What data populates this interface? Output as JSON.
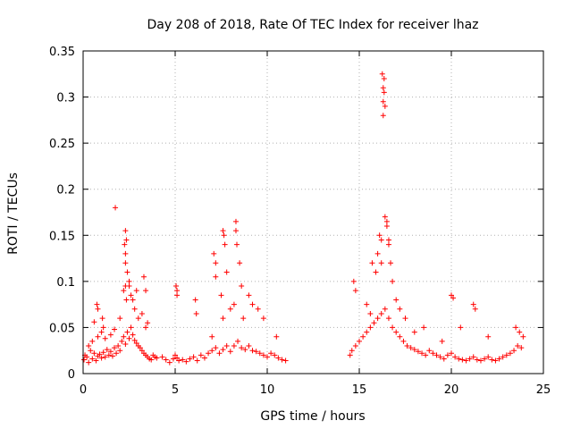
{
  "chart_data": {
    "type": "scatter",
    "title": "Day 208 of 2018, Rate Of TEC Index for receiver lhaz",
    "xlabel": "GPS time / hours",
    "ylabel": "ROTI / TECUs",
    "xlim": [
      0,
      25
    ],
    "ylim": [
      0,
      0.35
    ],
    "xticks": [
      0,
      5,
      10,
      15,
      20,
      25
    ],
    "yticks": [
      0,
      0.05,
      0.1,
      0.15,
      0.2,
      0.25,
      0.3,
      0.35
    ],
    "xtick_labels": [
      "0",
      "5",
      "10",
      "15",
      "20",
      "25"
    ],
    "ytick_labels": [
      "0",
      "0.05",
      "0.1",
      "0.15",
      "0.2",
      "0.25",
      "0.3",
      "0.35"
    ],
    "grid": true,
    "marker": "+",
    "color": "#ff0000",
    "series": [
      {
        "x": [
          0.05,
          0.1,
          0.2,
          0.3,
          0.4,
          0.5,
          0.6,
          0.7,
          0.8,
          0.9,
          1.0,
          1.1,
          1.2,
          1.3,
          1.4,
          1.5,
          1.6,
          1.7,
          1.8,
          1.9,
          2.0,
          2.1,
          2.2,
          2.3,
          2.4,
          2.5,
          2.6,
          2.7,
          2.8,
          2.9,
          3.0,
          3.1,
          3.2,
          3.3,
          3.4,
          3.5,
          3.6,
          3.7,
          3.8,
          3.9,
          4.0,
          0.3,
          0.5,
          0.8,
          1.0,
          1.2,
          1.5,
          1.7,
          2.0,
          2.2,
          2.3,
          2.3,
          2.35,
          2.4,
          2.5,
          2.6,
          2.8,
          3.0,
          3.2,
          3.4,
          3.5,
          0.6,
          0.75,
          0.8,
          1.05,
          1.1,
          1.75,
          2.25,
          2.3,
          2.3,
          2.35,
          2.5,
          2.7,
          2.9,
          3.3,
          3.4,
          4.3,
          4.5,
          4.7,
          4.9,
          5.0,
          5.1,
          5.2,
          5.4,
          5.6,
          5.8,
          6.0,
          6.2,
          6.4,
          6.6,
          6.8,
          7.0,
          7.2,
          7.4,
          7.6,
          7.8,
          8.0,
          8.2,
          8.4,
          8.6,
          8.8,
          9.0,
          9.2,
          9.4,
          9.6,
          9.8,
          10.0,
          10.2,
          10.4,
          10.6,
          10.8,
          11.0,
          5.05,
          5.1,
          5.1,
          6.1,
          6.15,
          7.0,
          7.1,
          7.2,
          7.2,
          7.5,
          7.6,
          7.6,
          7.65,
          7.7,
          7.8,
          8.0,
          8.2,
          8.3,
          8.3,
          8.35,
          8.5,
          8.6,
          8.7,
          9.0,
          9.2,
          9.5,
          9.8,
          10.5,
          14.5,
          14.6,
          14.8,
          15.0,
          15.2,
          15.4,
          15.6,
          15.8,
          16.0,
          16.2,
          16.4,
          16.6,
          16.8,
          17.0,
          17.2,
          17.4,
          17.6,
          17.8,
          18.0,
          18.2,
          18.4,
          18.6,
          18.8,
          19.0,
          19.2,
          19.4,
          19.6,
          19.8,
          20.0,
          20.2,
          20.4,
          20.6,
          20.8,
          21.0,
          21.2,
          21.4,
          21.6,
          21.8,
          22.0,
          22.2,
          22.4,
          22.6,
          22.8,
          23.0,
          23.2,
          23.4,
          23.6,
          23.8,
          14.7,
          14.8,
          15.4,
          15.6,
          15.7,
          15.9,
          16.0,
          16.1,
          16.2,
          16.2,
          16.25,
          16.3,
          16.3,
          16.3,
          16.35,
          16.35,
          16.4,
          16.4,
          16.5,
          16.5,
          16.6,
          16.6,
          16.7,
          16.8,
          17.0,
          17.2,
          17.5,
          18.0,
          18.5,
          19.5,
          20.0,
          20.1,
          20.5,
          21.2,
          21.3,
          22.0,
          23.5,
          23.7,
          23.9
        ],
        "y": [
          0.015,
          0.02,
          0.018,
          0.012,
          0.025,
          0.016,
          0.022,
          0.014,
          0.019,
          0.021,
          0.017,
          0.023,
          0.018,
          0.026,
          0.02,
          0.024,
          0.019,
          0.028,
          0.022,
          0.03,
          0.025,
          0.035,
          0.04,
          0.032,
          0.045,
          0.038,
          0.05,
          0.042,
          0.036,
          0.033,
          0.03,
          0.028,
          0.025,
          0.022,
          0.02,
          0.018,
          0.016,
          0.015,
          0.02,
          0.018,
          0.017,
          0.03,
          0.035,
          0.04,
          0.045,
          0.038,
          0.042,
          0.048,
          0.06,
          0.09,
          0.13,
          0.155,
          0.145,
          0.11,
          0.1,
          0.085,
          0.07,
          0.06,
          0.065,
          0.05,
          0.055,
          0.056,
          0.075,
          0.07,
          0.06,
          0.05,
          0.18,
          0.14,
          0.12,
          0.095,
          0.08,
          0.095,
          0.08,
          0.09,
          0.105,
          0.09,
          0.018,
          0.015,
          0.012,
          0.016,
          0.02,
          0.017,
          0.014,
          0.015,
          0.013,
          0.016,
          0.018,
          0.014,
          0.02,
          0.017,
          0.022,
          0.025,
          0.028,
          0.022,
          0.026,
          0.03,
          0.024,
          0.03,
          0.035,
          0.028,
          0.026,
          0.03,
          0.025,
          0.024,
          0.022,
          0.02,
          0.018,
          0.022,
          0.02,
          0.017,
          0.015,
          0.014,
          0.095,
          0.09,
          0.085,
          0.08,
          0.065,
          0.04,
          0.13,
          0.12,
          0.105,
          0.085,
          0.06,
          0.155,
          0.15,
          0.14,
          0.11,
          0.07,
          0.075,
          0.165,
          0.155,
          0.14,
          0.12,
          0.095,
          0.06,
          0.085,
          0.075,
          0.07,
          0.06,
          0.04,
          0.02,
          0.025,
          0.03,
          0.035,
          0.04,
          0.045,
          0.05,
          0.055,
          0.06,
          0.065,
          0.07,
          0.06,
          0.05,
          0.045,
          0.04,
          0.035,
          0.03,
          0.028,
          0.026,
          0.024,
          0.022,
          0.02,
          0.025,
          0.022,
          0.02,
          0.018,
          0.016,
          0.02,
          0.022,
          0.018,
          0.016,
          0.015,
          0.014,
          0.016,
          0.018,
          0.015,
          0.014,
          0.016,
          0.018,
          0.015,
          0.014,
          0.016,
          0.018,
          0.02,
          0.022,
          0.025,
          0.03,
          0.028,
          0.1,
          0.09,
          0.075,
          0.065,
          0.12,
          0.11,
          0.13,
          0.15,
          0.12,
          0.145,
          0.325,
          0.31,
          0.295,
          0.28,
          0.32,
          0.305,
          0.29,
          0.17,
          0.165,
          0.16,
          0.145,
          0.14,
          0.12,
          0.1,
          0.08,
          0.07,
          0.06,
          0.045,
          0.05,
          0.035,
          0.085,
          0.082,
          0.05,
          0.075,
          0.07,
          0.04,
          0.05,
          0.045,
          0.04
        ]
      }
    ]
  }
}
